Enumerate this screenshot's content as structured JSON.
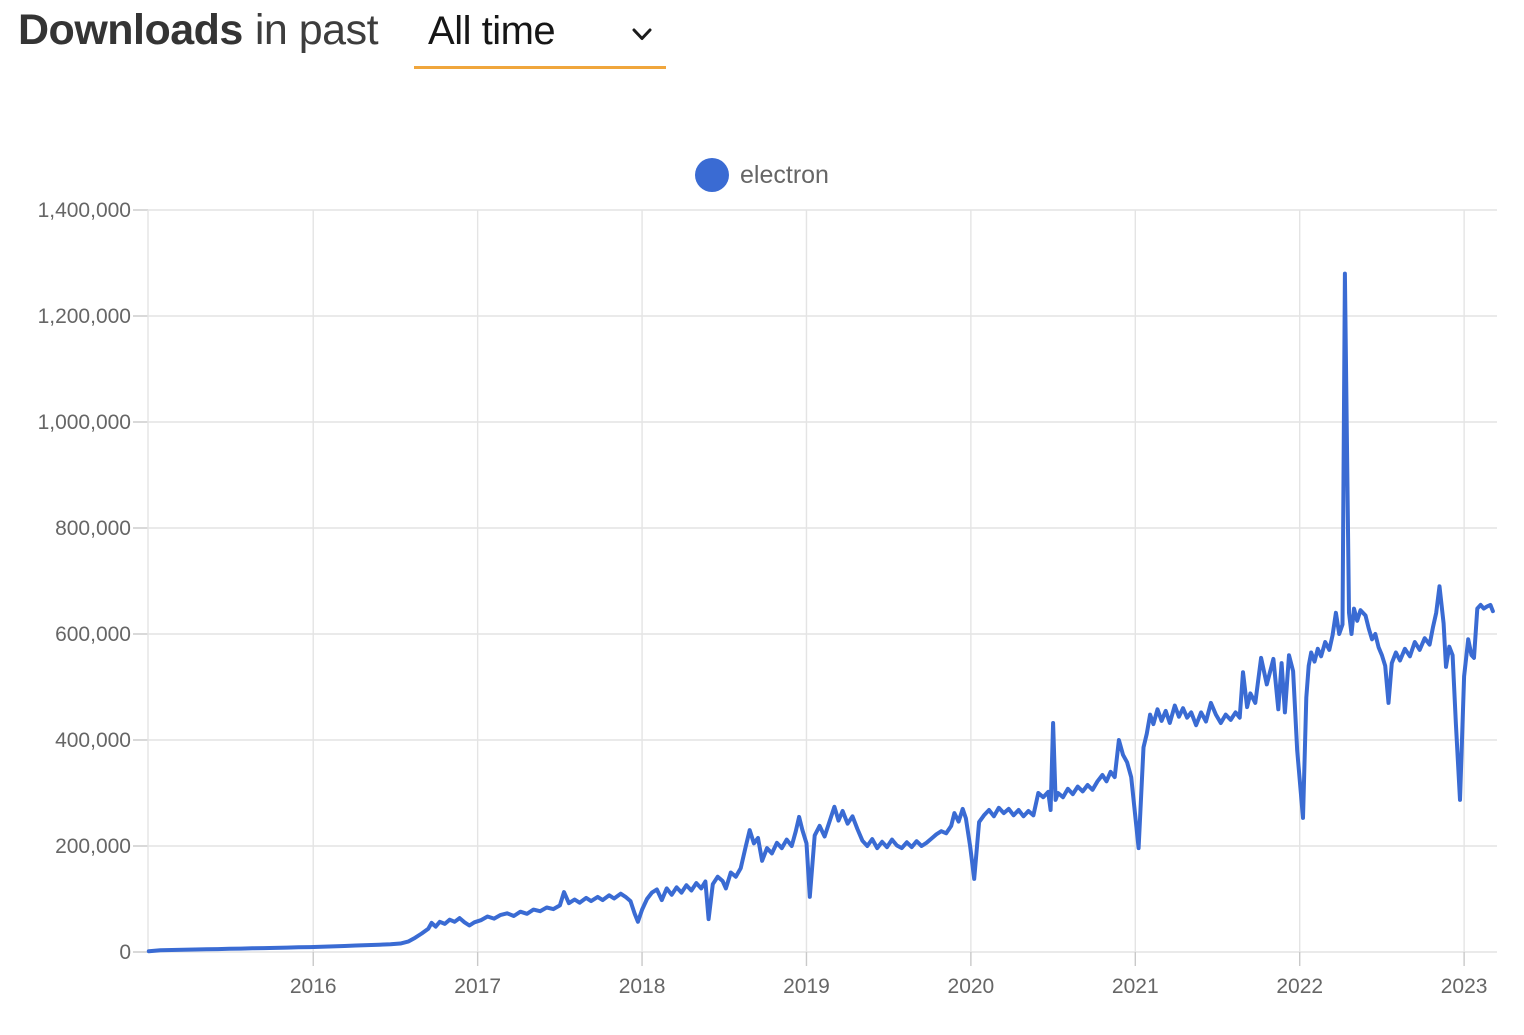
{
  "header": {
    "title_bold": "Downloads",
    "title_rest": "in past",
    "range_selector": {
      "value": "All time",
      "icon": "chevron-down-icon"
    }
  },
  "legend": {
    "items": [
      {
        "label": "electron",
        "color": "#3a6bd3"
      }
    ]
  },
  "colors": {
    "series_blue": "#3a6bd3",
    "grid": "#e4e4e4",
    "tick_mark": "#c9c9c9",
    "tick_label": "#666666",
    "accent_underline": "#f0a63c",
    "title_text": "#343434"
  },
  "chart_data": {
    "type": "line",
    "title": "Downloads in past All time",
    "xlabel": "",
    "ylabel": "",
    "grid": true,
    "legend_position": "top-center",
    "xlim": [
      2014.995,
      2023.2
    ],
    "ylim": [
      0,
      1400000
    ],
    "x_ticks": [
      {
        "v": 2016,
        "label": "2016"
      },
      {
        "v": 2017,
        "label": "2017"
      },
      {
        "v": 2018,
        "label": "2018"
      },
      {
        "v": 2019,
        "label": "2019"
      },
      {
        "v": 2020,
        "label": "2020"
      },
      {
        "v": 2021,
        "label": "2021"
      },
      {
        "v": 2022,
        "label": "2022"
      },
      {
        "v": 2023,
        "label": "2023"
      }
    ],
    "y_ticks": [
      {
        "v": 0,
        "label": "0"
      },
      {
        "v": 200000,
        "label": "200,000"
      },
      {
        "v": 400000,
        "label": "400,000"
      },
      {
        "v": 600000,
        "label": "600,000"
      },
      {
        "v": 800000,
        "label": "800,000"
      },
      {
        "v": 1000000,
        "label": "1,000,000"
      },
      {
        "v": 1200000,
        "label": "1,200,000"
      },
      {
        "v": 1400000,
        "label": "1,400,000"
      }
    ],
    "series": [
      {
        "name": "electron",
        "color": "#3a6bd3",
        "points": [
          [
            2015.0,
            1500
          ],
          [
            2015.07,
            3200
          ],
          [
            2015.14,
            3800
          ],
          [
            2015.21,
            4300
          ],
          [
            2015.28,
            4700
          ],
          [
            2015.35,
            5100
          ],
          [
            2015.42,
            5500
          ],
          [
            2015.49,
            6000
          ],
          [
            2015.56,
            6400
          ],
          [
            2015.63,
            6900
          ],
          [
            2015.7,
            7300
          ],
          [
            2015.77,
            7800
          ],
          [
            2015.84,
            8300
          ],
          [
            2015.91,
            8800
          ],
          [
            2015.98,
            9200
          ],
          [
            2016.05,
            9800
          ],
          [
            2016.12,
            10600
          ],
          [
            2016.19,
            11400
          ],
          [
            2016.26,
            12200
          ],
          [
            2016.33,
            13000
          ],
          [
            2016.4,
            13800
          ],
          [
            2016.47,
            14800
          ],
          [
            2016.53,
            16000
          ],
          [
            2016.58,
            20000
          ],
          [
            2016.62,
            27000
          ],
          [
            2016.66,
            35000
          ],
          [
            2016.7,
            44000
          ],
          [
            2016.72,
            55000
          ],
          [
            2016.745,
            48000
          ],
          [
            2016.77,
            57000
          ],
          [
            2016.8,
            53000
          ],
          [
            2016.83,
            61000
          ],
          [
            2016.86,
            57000
          ],
          [
            2016.89,
            64000
          ],
          [
            2016.92,
            56000
          ],
          [
            2016.95,
            50000
          ],
          [
            2016.98,
            56000
          ],
          [
            2017.02,
            60000
          ],
          [
            2017.06,
            67000
          ],
          [
            2017.1,
            63000
          ],
          [
            2017.14,
            70000
          ],
          [
            2017.18,
            73000
          ],
          [
            2017.22,
            68000
          ],
          [
            2017.26,
            76000
          ],
          [
            2017.3,
            72000
          ],
          [
            2017.34,
            80000
          ],
          [
            2017.38,
            77000
          ],
          [
            2017.42,
            84000
          ],
          [
            2017.46,
            81000
          ],
          [
            2017.5,
            88000
          ],
          [
            2017.525,
            113000
          ],
          [
            2017.555,
            92000
          ],
          [
            2017.59,
            99000
          ],
          [
            2017.62,
            93000
          ],
          [
            2017.66,
            102000
          ],
          [
            2017.69,
            96000
          ],
          [
            2017.73,
            104000
          ],
          [
            2017.76,
            98000
          ],
          [
            2017.8,
            107000
          ],
          [
            2017.83,
            101000
          ],
          [
            2017.87,
            110000
          ],
          [
            2017.9,
            104000
          ],
          [
            2017.93,
            96000
          ],
          [
            2017.955,
            72000
          ],
          [
            2017.975,
            57000
          ],
          [
            2018.0,
            80000
          ],
          [
            2018.03,
            100000
          ],
          [
            2018.06,
            112000
          ],
          [
            2018.09,
            118000
          ],
          [
            2018.12,
            98000
          ],
          [
            2018.15,
            120000
          ],
          [
            2018.18,
            108000
          ],
          [
            2018.21,
            122000
          ],
          [
            2018.24,
            112000
          ],
          [
            2018.27,
            126000
          ],
          [
            2018.3,
            116000
          ],
          [
            2018.33,
            130000
          ],
          [
            2018.36,
            120000
          ],
          [
            2018.385,
            133000
          ],
          [
            2018.405,
            62000
          ],
          [
            2018.43,
            128000
          ],
          [
            2018.46,
            142000
          ],
          [
            2018.49,
            134000
          ],
          [
            2018.51,
            120000
          ],
          [
            2018.54,
            150000
          ],
          [
            2018.57,
            142000
          ],
          [
            2018.6,
            158000
          ],
          [
            2018.63,
            198000
          ],
          [
            2018.655,
            230000
          ],
          [
            2018.68,
            205000
          ],
          [
            2018.705,
            215000
          ],
          [
            2018.73,
            172000
          ],
          [
            2018.76,
            196000
          ],
          [
            2018.79,
            186000
          ],
          [
            2018.82,
            206000
          ],
          [
            2018.85,
            196000
          ],
          [
            2018.88,
            212000
          ],
          [
            2018.91,
            200000
          ],
          [
            2018.935,
            228000
          ],
          [
            2018.955,
            255000
          ],
          [
            2018.975,
            230000
          ],
          [
            2019.0,
            205000
          ],
          [
            2019.02,
            104000
          ],
          [
            2019.05,
            220000
          ],
          [
            2019.08,
            238000
          ],
          [
            2019.11,
            218000
          ],
          [
            2019.14,
            246000
          ],
          [
            2019.17,
            274000
          ],
          [
            2019.195,
            248000
          ],
          [
            2019.22,
            266000
          ],
          [
            2019.25,
            242000
          ],
          [
            2019.28,
            256000
          ],
          [
            2019.31,
            232000
          ],
          [
            2019.34,
            210000
          ],
          [
            2019.37,
            200000
          ],
          [
            2019.4,
            213000
          ],
          [
            2019.43,
            196000
          ],
          [
            2019.46,
            208000
          ],
          [
            2019.49,
            198000
          ],
          [
            2019.52,
            212000
          ],
          [
            2019.55,
            201000
          ],
          [
            2019.58,
            196000
          ],
          [
            2019.61,
            207000
          ],
          [
            2019.64,
            198000
          ],
          [
            2019.67,
            209000
          ],
          [
            2019.7,
            200000
          ],
          [
            2019.73,
            206000
          ],
          [
            2019.76,
            214000
          ],
          [
            2019.79,
            222000
          ],
          [
            2019.82,
            228000
          ],
          [
            2019.85,
            224000
          ],
          [
            2019.88,
            238000
          ],
          [
            2019.9,
            262000
          ],
          [
            2019.925,
            246000
          ],
          [
            2019.95,
            270000
          ],
          [
            2019.97,
            252000
          ],
          [
            2019.995,
            200000
          ],
          [
            2020.02,
            138000
          ],
          [
            2020.05,
            245000
          ],
          [
            2020.08,
            258000
          ],
          [
            2020.11,
            268000
          ],
          [
            2020.14,
            256000
          ],
          [
            2020.17,
            272000
          ],
          [
            2020.2,
            262000
          ],
          [
            2020.23,
            270000
          ],
          [
            2020.26,
            258000
          ],
          [
            2020.29,
            268000
          ],
          [
            2020.32,
            256000
          ],
          [
            2020.35,
            266000
          ],
          [
            2020.38,
            258000
          ],
          [
            2020.41,
            300000
          ],
          [
            2020.44,
            292000
          ],
          [
            2020.47,
            302000
          ],
          [
            2020.485,
            268000
          ],
          [
            2020.5,
            432000
          ],
          [
            2020.515,
            287000
          ],
          [
            2020.53,
            300000
          ],
          [
            2020.56,
            292000
          ],
          [
            2020.59,
            308000
          ],
          [
            2020.62,
            298000
          ],
          [
            2020.65,
            312000
          ],
          [
            2020.68,
            303000
          ],
          [
            2020.71,
            315000
          ],
          [
            2020.74,
            306000
          ],
          [
            2020.77,
            322000
          ],
          [
            2020.8,
            334000
          ],
          [
            2020.825,
            322000
          ],
          [
            2020.85,
            340000
          ],
          [
            2020.875,
            330000
          ],
          [
            2020.9,
            400000
          ],
          [
            2020.925,
            372000
          ],
          [
            2020.95,
            358000
          ],
          [
            2020.975,
            330000
          ],
          [
            2021.02,
            196000
          ],
          [
            2021.05,
            386000
          ],
          [
            2021.07,
            412000
          ],
          [
            2021.09,
            448000
          ],
          [
            2021.11,
            430000
          ],
          [
            2021.135,
            458000
          ],
          [
            2021.16,
            436000
          ],
          [
            2021.185,
            455000
          ],
          [
            2021.21,
            432000
          ],
          [
            2021.24,
            465000
          ],
          [
            2021.265,
            444000
          ],
          [
            2021.29,
            460000
          ],
          [
            2021.315,
            442000
          ],
          [
            2021.34,
            452000
          ],
          [
            2021.37,
            428000
          ],
          [
            2021.4,
            452000
          ],
          [
            2021.43,
            435000
          ],
          [
            2021.46,
            470000
          ],
          [
            2021.49,
            448000
          ],
          [
            2021.52,
            432000
          ],
          [
            2021.55,
            448000
          ],
          [
            2021.58,
            438000
          ],
          [
            2021.61,
            452000
          ],
          [
            2021.635,
            442000
          ],
          [
            2021.655,
            528000
          ],
          [
            2021.68,
            462000
          ],
          [
            2021.7,
            488000
          ],
          [
            2021.73,
            470000
          ],
          [
            2021.765,
            555000
          ],
          [
            2021.8,
            505000
          ],
          [
            2021.84,
            553000
          ],
          [
            2021.87,
            458000
          ],
          [
            2021.89,
            545000
          ],
          [
            2021.91,
            452000
          ],
          [
            2021.935,
            560000
          ],
          [
            2021.96,
            530000
          ],
          [
            2021.985,
            380000
          ],
          [
            2022.02,
            253000
          ],
          [
            2022.04,
            480000
          ],
          [
            2022.055,
            540000
          ],
          [
            2022.07,
            565000
          ],
          [
            2022.09,
            548000
          ],
          [
            2022.11,
            572000
          ],
          [
            2022.13,
            558000
          ],
          [
            2022.155,
            585000
          ],
          [
            2022.18,
            570000
          ],
          [
            2022.2,
            598000
          ],
          [
            2022.22,
            640000
          ],
          [
            2022.24,
            600000
          ],
          [
            2022.26,
            618000
          ],
          [
            2022.275,
            1280000
          ],
          [
            2022.3,
            640000
          ],
          [
            2022.315,
            600000
          ],
          [
            2022.33,
            648000
          ],
          [
            2022.35,
            625000
          ],
          [
            2022.37,
            645000
          ],
          [
            2022.4,
            635000
          ],
          [
            2022.42,
            610000
          ],
          [
            2022.44,
            590000
          ],
          [
            2022.46,
            600000
          ],
          [
            2022.48,
            575000
          ],
          [
            2022.5,
            560000
          ],
          [
            2022.52,
            540000
          ],
          [
            2022.54,
            470000
          ],
          [
            2022.56,
            545000
          ],
          [
            2022.585,
            565000
          ],
          [
            2022.61,
            550000
          ],
          [
            2022.64,
            572000
          ],
          [
            2022.67,
            558000
          ],
          [
            2022.7,
            585000
          ],
          [
            2022.73,
            570000
          ],
          [
            2022.76,
            592000
          ],
          [
            2022.79,
            580000
          ],
          [
            2022.81,
            612000
          ],
          [
            2022.83,
            640000
          ],
          [
            2022.85,
            690000
          ],
          [
            2022.875,
            620000
          ],
          [
            2022.89,
            538000
          ],
          [
            2022.91,
            576000
          ],
          [
            2022.93,
            560000
          ],
          [
            2022.95,
            430000
          ],
          [
            2022.975,
            287000
          ],
          [
            2023.0,
            520000
          ],
          [
            2023.025,
            590000
          ],
          [
            2023.045,
            560000
          ],
          [
            2023.06,
            555000
          ],
          [
            2023.08,
            648000
          ],
          [
            2023.1,
            655000
          ],
          [
            2023.12,
            648000
          ],
          [
            2023.14,
            652000
          ],
          [
            2023.16,
            655000
          ],
          [
            2023.175,
            643000
          ]
        ]
      }
    ]
  }
}
